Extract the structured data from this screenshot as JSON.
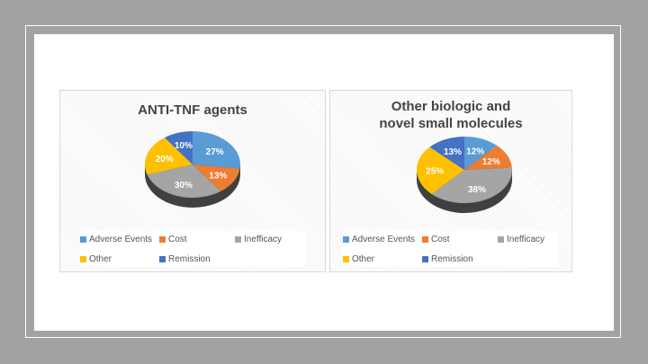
{
  "chart_data": [
    {
      "type": "pie",
      "title": "ANTI-TNF agents",
      "categories": [
        "Adverse Events",
        "Cost",
        "Inefficacy",
        "Other",
        "Remission"
      ],
      "values": [
        27,
        13,
        30,
        20,
        10
      ],
      "labels": [
        "27%",
        "13%",
        "30%",
        "20%",
        "10%"
      ],
      "colors": [
        "#5b9bd5",
        "#ed7d31",
        "#a5a5a5",
        "#ffc000",
        "#4472c4"
      ],
      "legend_placement": "bottom"
    },
    {
      "type": "pie",
      "title": "Other biologic and novel small molecules",
      "categories": [
        "Adverse Events",
        "Cost",
        "Inefficacy",
        "Other",
        "Remission"
      ],
      "values": [
        12,
        12,
        38,
        25,
        13
      ],
      "labels": [
        "12%",
        "12%",
        "38%",
        "25%",
        "13%"
      ],
      "colors": [
        "#5b9bd5",
        "#ed7d31",
        "#a5a5a5",
        "#ffc000",
        "#4472c4"
      ],
      "legend_placement": "bottom"
    }
  ]
}
